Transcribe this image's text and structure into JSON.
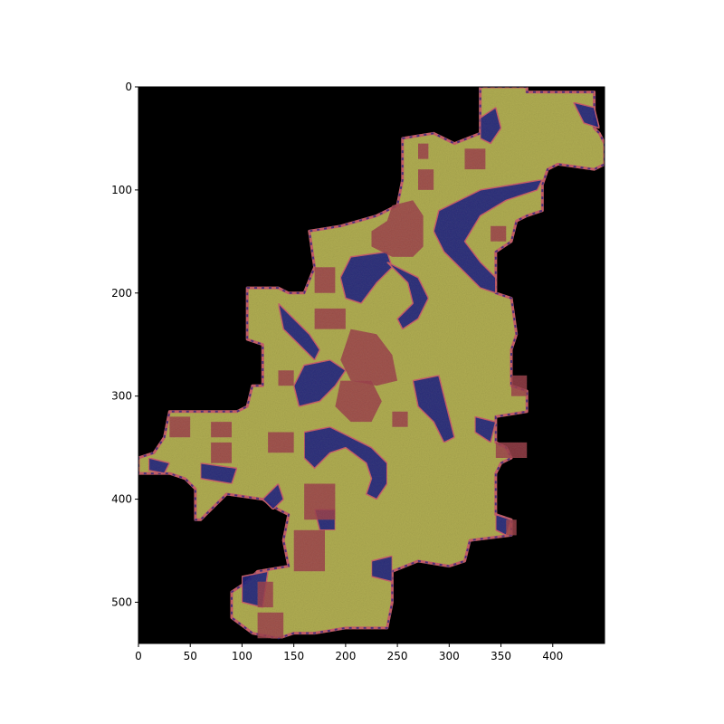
{
  "figure": {
    "background": "#ffffff",
    "image_background": "#000000"
  },
  "chart_data": {
    "type": "image",
    "xlim": [
      0,
      450
    ],
    "ylim": [
      540,
      0
    ],
    "y_inverted": true,
    "x_ticks": [
      0,
      50,
      100,
      150,
      200,
      250,
      300,
      350,
      400
    ],
    "y_ticks": [
      0,
      100,
      200,
      300,
      400,
      500
    ],
    "x_tick_labels": [
      "0",
      "50",
      "100",
      "150",
      "200",
      "250",
      "300",
      "350",
      "400"
    ],
    "y_tick_labels": [
      "0",
      "100",
      "200",
      "300",
      "400",
      "500"
    ],
    "colors": {
      "background": "#000000",
      "tissue": "#b0ad52",
      "tissue_dark": "#8f8c3a",
      "class_red": "#9c3b45",
      "class_blue": "#1b1f80",
      "border_pink": "#c9606b"
    },
    "tissue_outline": [
      [
        330,
        0
      ],
      [
        375,
        0
      ],
      [
        375,
        5
      ],
      [
        440,
        5
      ],
      [
        440,
        40
      ],
      [
        445,
        45
      ],
      [
        450,
        55
      ],
      [
        450,
        75
      ],
      [
        440,
        80
      ],
      [
        405,
        75
      ],
      [
        395,
        80
      ],
      [
        390,
        95
      ],
      [
        390,
        120
      ],
      [
        375,
        125
      ],
      [
        365,
        130
      ],
      [
        360,
        150
      ],
      [
        345,
        160
      ],
      [
        345,
        200
      ],
      [
        360,
        205
      ],
      [
        365,
        240
      ],
      [
        360,
        255
      ],
      [
        360,
        290
      ],
      [
        375,
        295
      ],
      [
        375,
        315
      ],
      [
        345,
        320
      ],
      [
        345,
        345
      ],
      [
        355,
        350
      ],
      [
        360,
        360
      ],
      [
        350,
        365
      ],
      [
        345,
        375
      ],
      [
        345,
        415
      ],
      [
        360,
        420
      ],
      [
        360,
        435
      ],
      [
        320,
        440
      ],
      [
        315,
        460
      ],
      [
        300,
        465
      ],
      [
        270,
        460
      ],
      [
        245,
        470
      ],
      [
        245,
        500
      ],
      [
        240,
        525
      ],
      [
        200,
        525
      ],
      [
        170,
        530
      ],
      [
        150,
        530
      ],
      [
        135,
        535
      ],
      [
        110,
        530
      ],
      [
        90,
        515
      ],
      [
        90,
        490
      ],
      [
        105,
        480
      ],
      [
        115,
        470
      ],
      [
        145,
        465
      ],
      [
        140,
        440
      ],
      [
        145,
        415
      ],
      [
        135,
        410
      ],
      [
        120,
        400
      ],
      [
        85,
        395
      ],
      [
        65,
        415
      ],
      [
        60,
        420
      ],
      [
        55,
        420
      ],
      [
        55,
        390
      ],
      [
        45,
        380
      ],
      [
        30,
        375
      ],
      [
        0,
        375
      ],
      [
        0,
        360
      ],
      [
        15,
        355
      ],
      [
        25,
        340
      ],
      [
        30,
        315
      ],
      [
        95,
        315
      ],
      [
        105,
        310
      ],
      [
        110,
        290
      ],
      [
        120,
        290
      ],
      [
        120,
        250
      ],
      [
        105,
        245
      ],
      [
        105,
        195
      ],
      [
        135,
        195
      ],
      [
        145,
        200
      ],
      [
        160,
        200
      ],
      [
        170,
        175
      ],
      [
        165,
        140
      ],
      [
        195,
        135
      ],
      [
        230,
        125
      ],
      [
        250,
        115
      ],
      [
        255,
        90
      ],
      [
        255,
        50
      ],
      [
        285,
        45
      ],
      [
        305,
        55
      ],
      [
        330,
        45
      ],
      [
        330,
        0
      ]
    ],
    "blue_regions": [
      [
        [
          330,
          30
        ],
        [
          345,
          20
        ],
        [
          350,
          40
        ],
        [
          340,
          55
        ],
        [
          330,
          50
        ]
      ],
      [
        [
          420,
          15
        ],
        [
          440,
          20
        ],
        [
          445,
          40
        ],
        [
          430,
          35
        ]
      ],
      [
        [
          290,
          120
        ],
        [
          330,
          100
        ],
        [
          360,
          95
        ],
        [
          390,
          90
        ],
        [
          385,
          100
        ],
        [
          355,
          110
        ],
        [
          330,
          125
        ],
        [
          315,
          150
        ],
        [
          330,
          170
        ],
        [
          345,
          185
        ],
        [
          345,
          200
        ],
        [
          330,
          195
        ],
        [
          310,
          175
        ],
        [
          295,
          160
        ],
        [
          285,
          140
        ]
      ],
      [
        [
          205,
          165
        ],
        [
          240,
          160
        ],
        [
          245,
          175
        ],
        [
          230,
          190
        ],
        [
          215,
          210
        ],
        [
          200,
          205
        ],
        [
          195,
          185
        ]
      ],
      [
        [
          240,
          170
        ],
        [
          270,
          185
        ],
        [
          280,
          205
        ],
        [
          270,
          225
        ],
        [
          255,
          235
        ],
        [
          250,
          225
        ],
        [
          265,
          210
        ],
        [
          260,
          190
        ]
      ],
      [
        [
          135,
          210
        ],
        [
          150,
          225
        ],
        [
          165,
          240
        ],
        [
          175,
          255
        ],
        [
          170,
          265
        ],
        [
          155,
          250
        ],
        [
          140,
          235
        ]
      ],
      [
        [
          160,
          270
        ],
        [
          185,
          265
        ],
        [
          200,
          275
        ],
        [
          190,
          290
        ],
        [
          175,
          305
        ],
        [
          155,
          310
        ],
        [
          150,
          290
        ]
      ],
      [
        [
          265,
          285
        ],
        [
          290,
          280
        ],
        [
          295,
          300
        ],
        [
          300,
          320
        ],
        [
          305,
          340
        ],
        [
          295,
          345
        ],
        [
          285,
          325
        ],
        [
          270,
          310
        ]
      ],
      [
        [
          325,
          320
        ],
        [
          345,
          325
        ],
        [
          340,
          345
        ],
        [
          325,
          335
        ]
      ],
      [
        [
          160,
          335
        ],
        [
          185,
          330
        ],
        [
          205,
          340
        ],
        [
          225,
          350
        ],
        [
          240,
          365
        ],
        [
          240,
          385
        ],
        [
          230,
          400
        ],
        [
          220,
          395
        ],
        [
          225,
          380
        ],
        [
          220,
          365
        ],
        [
          200,
          350
        ],
        [
          185,
          355
        ],
        [
          170,
          370
        ],
        [
          160,
          360
        ]
      ],
      [
        [
          120,
          400
        ],
        [
          135,
          385
        ],
        [
          140,
          400
        ],
        [
          130,
          410
        ]
      ],
      [
        [
          170,
          410
        ],
        [
          190,
          410
        ],
        [
          190,
          430
        ],
        [
          175,
          430
        ]
      ],
      [
        [
          100,
          475
        ],
        [
          125,
          470
        ],
        [
          120,
          505
        ],
        [
          100,
          500
        ]
      ],
      [
        [
          225,
          460
        ],
        [
          245,
          455
        ],
        [
          245,
          480
        ],
        [
          225,
          475
        ]
      ],
      [
        [
          10,
          360
        ],
        [
          30,
          365
        ],
        [
          25,
          375
        ],
        [
          10,
          372
        ]
      ],
      [
        [
          60,
          365
        ],
        [
          95,
          370
        ],
        [
          90,
          385
        ],
        [
          60,
          380
        ]
      ],
      [
        [
          345,
          415
        ],
        [
          360,
          420
        ],
        [
          355,
          435
        ],
        [
          345,
          430
        ]
      ]
    ],
    "red_regions": [
      [
        [
          270,
          55
        ],
        [
          280,
          55
        ],
        [
          280,
          70
        ],
        [
          270,
          70
        ]
      ],
      [
        [
          315,
          60
        ],
        [
          335,
          60
        ],
        [
          335,
          80
        ],
        [
          315,
          80
        ]
      ],
      [
        [
          270,
          80
        ],
        [
          285,
          80
        ],
        [
          285,
          100
        ],
        [
          270,
          100
        ]
      ],
      [
        [
          245,
          115
        ],
        [
          265,
          110
        ],
        [
          275,
          125
        ],
        [
          275,
          155
        ],
        [
          265,
          165
        ],
        [
          245,
          165
        ],
        [
          225,
          155
        ],
        [
          225,
          140
        ],
        [
          240,
          130
        ]
      ],
      [
        [
          170,
          175
        ],
        [
          190,
          175
        ],
        [
          190,
          200
        ],
        [
          170,
          200
        ]
      ],
      [
        [
          170,
          215
        ],
        [
          200,
          215
        ],
        [
          200,
          235
        ],
        [
          170,
          235
        ]
      ],
      [
        [
          205,
          235
        ],
        [
          230,
          240
        ],
        [
          245,
          260
        ],
        [
          250,
          285
        ],
        [
          230,
          290
        ],
        [
          205,
          285
        ],
        [
          195,
          265
        ]
      ],
      [
        [
          195,
          285
        ],
        [
          225,
          285
        ],
        [
          235,
          305
        ],
        [
          225,
          325
        ],
        [
          205,
          325
        ],
        [
          190,
          310
        ]
      ],
      [
        [
          135,
          275
        ],
        [
          150,
          275
        ],
        [
          150,
          290
        ],
        [
          135,
          290
        ]
      ],
      [
        [
          245,
          315
        ],
        [
          260,
          315
        ],
        [
          260,
          330
        ],
        [
          245,
          330
        ]
      ],
      [
        [
          30,
          320
        ],
        [
          50,
          320
        ],
        [
          50,
          340
        ],
        [
          30,
          340
        ]
      ],
      [
        [
          70,
          325
        ],
        [
          90,
          325
        ],
        [
          90,
          340
        ],
        [
          70,
          340
        ]
      ],
      [
        [
          70,
          345
        ],
        [
          90,
          345
        ],
        [
          90,
          365
        ],
        [
          70,
          365
        ]
      ],
      [
        [
          125,
          335
        ],
        [
          150,
          335
        ],
        [
          150,
          355
        ],
        [
          125,
          355
        ]
      ],
      [
        [
          160,
          385
        ],
        [
          190,
          385
        ],
        [
          190,
          420
        ],
        [
          160,
          420
        ]
      ],
      [
        [
          150,
          430
        ],
        [
          180,
          430
        ],
        [
          180,
          470
        ],
        [
          150,
          470
        ]
      ],
      [
        [
          115,
          480
        ],
        [
          130,
          480
        ],
        [
          130,
          505
        ],
        [
          115,
          505
        ]
      ],
      [
        [
          115,
          510
        ],
        [
          140,
          510
        ],
        [
          140,
          535
        ],
        [
          115,
          535
        ]
      ],
      [
        [
          345,
          345
        ],
        [
          375,
          345
        ],
        [
          375,
          360
        ],
        [
          345,
          360
        ]
      ],
      [
        [
          355,
          420
        ],
        [
          365,
          420
        ],
        [
          365,
          435
        ],
        [
          355,
          435
        ]
      ],
      [
        [
          340,
          135
        ],
        [
          355,
          135
        ],
        [
          355,
          150
        ],
        [
          340,
          150
        ]
      ],
      [
        [
          360,
          280
        ],
        [
          375,
          280
        ],
        [
          375,
          300
        ],
        [
          360,
          300
        ]
      ]
    ]
  }
}
